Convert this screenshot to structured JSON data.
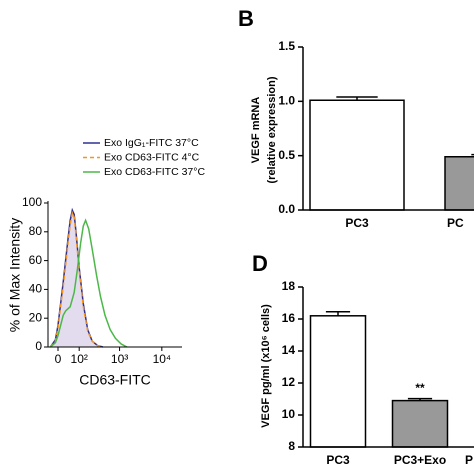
{
  "chart_data": [
    {
      "type": "line",
      "xlabel": "CD63-FITC",
      "ylabel": "% of Max Intensity",
      "xscale": "biexponential",
      "xlim": [
        -40,
        30000
      ],
      "ylim": [
        0,
        100
      ],
      "xticks": [
        0,
        {
          "value": 100,
          "label": "10²"
        },
        {
          "value": 1000,
          "label": "10³"
        },
        {
          "value": 10000,
          "label": "10⁴"
        }
      ],
      "yticks": [
        0,
        20,
        40,
        60,
        80,
        100
      ],
      "series": [
        {
          "name": "Exo IgG₁-FITC 37°C",
          "color": "#2e3192",
          "fill": "#e3dbee",
          "dash": false,
          "x": [
            -30,
            -10,
            0,
            10,
            20,
            30,
            40,
            50,
            60,
            70,
            80,
            100,
            130,
            170,
            220,
            300,
            400
          ],
          "values": [
            0,
            5,
            15,
            30,
            45,
            60,
            75,
            88,
            95,
            92,
            80,
            55,
            30,
            12,
            4,
            1,
            0
          ]
        },
        {
          "name": "Exo CD63-FITC 4°C",
          "color": "#f7941d",
          "fill": null,
          "dash": true,
          "x": [
            -30,
            -10,
            0,
            10,
            20,
            30,
            40,
            50,
            60,
            70,
            80,
            100,
            130,
            170,
            220,
            300,
            400
          ],
          "values": [
            0,
            4,
            13,
            28,
            42,
            57,
            72,
            85,
            93,
            90,
            78,
            53,
            28,
            11,
            4,
            1,
            0
          ]
        },
        {
          "name": "Exo CD63-FITC 37°C",
          "color": "#4cb848",
          "fill": null,
          "dash": false,
          "x": [
            -30,
            -10,
            0,
            10,
            20,
            30,
            50,
            70,
            90,
            110,
            130,
            150,
            180,
            220,
            280,
            350,
            450,
            600,
            800,
            1100,
            1500
          ],
          "values": [
            0,
            3,
            8,
            15,
            22,
            25,
            28,
            38,
            55,
            72,
            84,
            88,
            82,
            68,
            50,
            35,
            22,
            12,
            6,
            2,
            0
          ]
        }
      ]
    },
    {
      "type": "bar",
      "panel": "B",
      "ylabel": [
        "VEGF mRNA",
        "(relative expression)"
      ],
      "categories": [
        "PC3",
        "PC"
      ],
      "values": [
        1.01,
        0.49
      ],
      "errors": [
        0.03,
        0.02
      ],
      "colors": [
        "#ffffff",
        "#999999"
      ],
      "ylim": [
        0,
        1.5
      ],
      "yticks": [
        {
          "value": 0,
          "label": "0.0"
        },
        {
          "value": 0.5,
          "label": "0.5"
        },
        {
          "value": 1,
          "label": "1.0"
        },
        {
          "value": 1.5,
          "label": "1.5"
        }
      ]
    },
    {
      "type": "bar",
      "panel": "D",
      "ylabel": [
        "VEGF pg/ml (x10⁶ cells)"
      ],
      "categories": [
        "PC3",
        "PC3+Exo",
        "P"
      ],
      "values": [
        16.2,
        10.9,
        null
      ],
      "errors": [
        0.25,
        0.12,
        null
      ],
      "annotations": [
        null,
        "**",
        null
      ],
      "colors": [
        "#ffffff",
        "#999999",
        "#999999"
      ],
      "ylim": [
        8,
        18
      ],
      "yticks": [
        8,
        10,
        12,
        14,
        16,
        18
      ]
    }
  ]
}
